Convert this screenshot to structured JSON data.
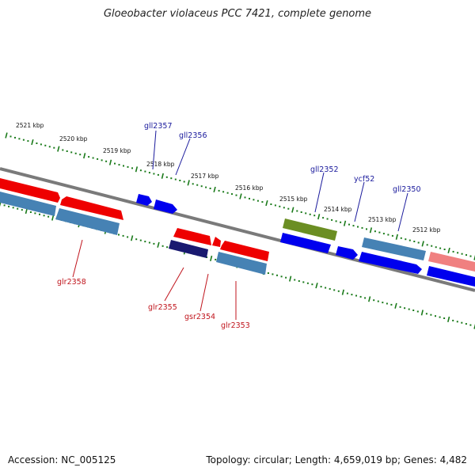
{
  "title": "Gloeobacter violaceus PCC 7421, complete genome",
  "accession": "Accession: NC_005125",
  "summary": "Topology: circular; Length: 4,659,019 bp; Genes: 4,482",
  "colors": {
    "forward_gene": "#0000ee",
    "reverse_gene": "#ee0000",
    "cds_blue": "#4682b4",
    "cds_green": "#6b8e23",
    "pseudo_pink": "#f08080",
    "rna_navy": "#191970",
    "tick_green": "#1a7a1a",
    "backbone": "#808080"
  },
  "kbp_labels": [
    "2521 kbp",
    "2520 kbp",
    "2519 kbp",
    "2518 kbp",
    "2517 kbp",
    "2516 kbp",
    "2515 kbp",
    "2514 kbp",
    "2513 kbp",
    "2512 kbp"
  ],
  "forward_labels": [
    "gll2357",
    "gll2356",
    "gll2352",
    "ycf52",
    "gll2350"
  ],
  "reverse_labels": [
    "glr2358",
    "glr2355",
    "gsr2354",
    "glr2353"
  ]
}
